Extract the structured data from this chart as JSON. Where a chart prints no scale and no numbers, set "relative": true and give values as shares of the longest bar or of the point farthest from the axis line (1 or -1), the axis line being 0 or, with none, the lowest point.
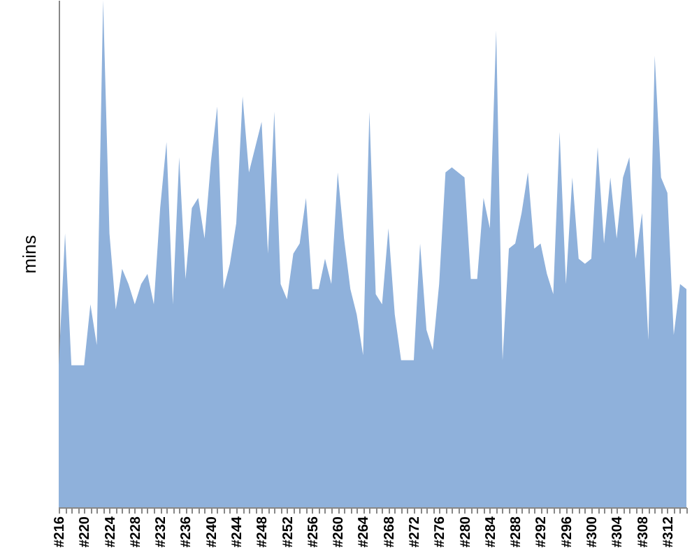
{
  "chart_data": {
    "type": "area",
    "ylabel": "mins",
    "relative": true,
    "grid": false,
    "categories": [
      "#216",
      null,
      null,
      null,
      "#220",
      null,
      null,
      null,
      "#224",
      null,
      null,
      null,
      "#228",
      null,
      null,
      null,
      "#232",
      null,
      null,
      null,
      "#236",
      null,
      null,
      null,
      "#240",
      null,
      null,
      null,
      "#244",
      null,
      null,
      null,
      "#248",
      null,
      null,
      null,
      "#252",
      null,
      null,
      null,
      "#256",
      null,
      null,
      null,
      "#260",
      null,
      null,
      null,
      "#264",
      null,
      null,
      null,
      "#268",
      null,
      null,
      null,
      "#272",
      null,
      null,
      null,
      "#276",
      null,
      null,
      null,
      "#280",
      null,
      null,
      null,
      "#284",
      null,
      null,
      null,
      "#288",
      null,
      null,
      null,
      "#292",
      null,
      null,
      null,
      "#296",
      null,
      null,
      null,
      "#300",
      null,
      null,
      null,
      "#304",
      null,
      null,
      null,
      "#308",
      null,
      null,
      null,
      "#312",
      null,
      null,
      null
    ],
    "series": [
      {
        "color": "#8fb1db",
        "values": [
          0.28,
          0.54,
          0.28,
          0.28,
          0.28,
          0.4,
          0.32,
          1.0,
          0.54,
          0.39,
          0.47,
          0.44,
          0.4,
          0.44,
          0.46,
          0.4,
          0.59,
          0.72,
          0.4,
          0.69,
          0.45,
          0.59,
          0.61,
          0.53,
          0.68,
          0.79,
          0.43,
          0.48,
          0.56,
          0.81,
          0.66,
          0.71,
          0.76,
          0.5,
          0.78,
          0.44,
          0.41,
          0.5,
          0.52,
          0.61,
          0.43,
          0.43,
          0.49,
          0.44,
          0.66,
          0.53,
          0.43,
          0.38,
          0.3,
          0.78,
          0.42,
          0.4,
          0.55,
          0.38,
          0.29,
          0.29,
          0.29,
          0.52,
          0.35,
          0.31,
          0.44,
          0.66,
          0.67,
          0.66,
          0.65,
          0.45,
          0.45,
          0.61,
          0.55,
          0.94,
          0.29,
          0.51,
          0.52,
          0.58,
          0.66,
          0.51,
          0.52,
          0.46,
          0.42,
          0.74,
          0.44,
          0.65,
          0.49,
          0.48,
          0.49,
          0.71,
          0.52,
          0.65,
          0.53,
          0.65,
          0.69,
          0.49,
          0.58,
          0.33,
          0.89,
          0.65,
          0.62,
          0.34,
          0.44,
          0.43
        ]
      }
    ]
  }
}
